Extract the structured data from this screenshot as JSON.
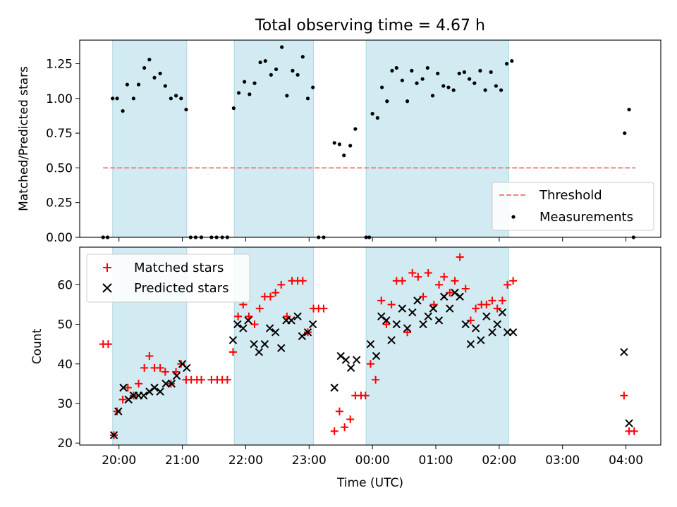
{
  "title": "Total observing time = 4.67 h",
  "colors": {
    "band": "#add8e6",
    "threshold": "#f08080",
    "measure": "#000000",
    "matched": "#ff0000",
    "predicted": "#000000"
  },
  "chart_data": [
    {
      "type": "scatter",
      "panel": "top",
      "ylabel": "Matched/Predicted stars",
      "xlabel": "",
      "ylim": [
        0,
        1.42
      ],
      "yticks": [
        0.0,
        0.25,
        0.5,
        0.75,
        1.0,
        1.25
      ],
      "ytick_labels": [
        "0.00",
        "0.25",
        "0.50",
        "0.75",
        "1.00",
        "1.25"
      ],
      "threshold": {
        "value": 0.5,
        "x_start": 19.75,
        "x_end": 28.15
      },
      "legend": [
        "Threshold",
        "Measurements"
      ],
      "legend_position": "lower right",
      "series": [
        {
          "name": "Measurements",
          "points": [
            [
              19.75,
              0.0
            ],
            [
              19.82,
              0.0
            ],
            [
              19.9,
              1.0
            ],
            [
              19.97,
              1.0
            ],
            [
              20.06,
              0.91
            ],
            [
              20.13,
              1.1
            ],
            [
              20.23,
              1.0
            ],
            [
              20.31,
              1.1
            ],
            [
              20.4,
              1.22
            ],
            [
              20.48,
              1.28
            ],
            [
              20.56,
              1.15
            ],
            [
              20.65,
              1.18
            ],
            [
              20.73,
              1.09
            ],
            [
              20.82,
              1.0
            ],
            [
              20.9,
              1.02
            ],
            [
              20.98,
              1.0
            ],
            [
              21.06,
              0.92
            ],
            [
              21.13,
              0.0
            ],
            [
              21.21,
              0.0
            ],
            [
              21.3,
              0.0
            ],
            [
              21.46,
              0.0
            ],
            [
              21.54,
              0.0
            ],
            [
              21.63,
              0.0
            ],
            [
              21.71,
              0.0
            ],
            [
              21.81,
              0.93
            ],
            [
              21.89,
              1.04
            ],
            [
              21.98,
              1.12
            ],
            [
              22.06,
              1.03
            ],
            [
              22.14,
              1.11
            ],
            [
              22.23,
              1.26
            ],
            [
              22.31,
              1.27
            ],
            [
              22.4,
              1.17
            ],
            [
              22.48,
              1.21
            ],
            [
              22.57,
              1.37
            ],
            [
              22.65,
              1.02
            ],
            [
              22.74,
              1.2
            ],
            [
              22.82,
              1.17
            ],
            [
              22.9,
              1.3
            ],
            [
              22.98,
              1.0
            ],
            [
              23.06,
              1.08
            ],
            [
              23.15,
              0.0
            ],
            [
              23.23,
              0.0
            ],
            [
              23.4,
              0.68
            ],
            [
              23.48,
              0.67
            ],
            [
              23.55,
              0.59
            ],
            [
              23.65,
              0.66
            ],
            [
              23.73,
              0.78
            ],
            [
              23.9,
              0.0
            ],
            [
              23.95,
              0.0
            ],
            [
              24.0,
              0.89
            ],
            [
              24.08,
              0.86
            ],
            [
              24.15,
              1.08
            ],
            [
              24.23,
              0.98
            ],
            [
              24.31,
              1.2
            ],
            [
              24.38,
              1.22
            ],
            [
              24.47,
              1.13
            ],
            [
              24.55,
              0.98
            ],
            [
              24.62,
              1.2
            ],
            [
              24.7,
              1.11
            ],
            [
              24.79,
              1.14
            ],
            [
              24.87,
              1.22
            ],
            [
              24.95,
              1.02
            ],
            [
              25.03,
              1.18
            ],
            [
              25.12,
              1.09
            ],
            [
              25.2,
              1.08
            ],
            [
              25.28,
              1.06
            ],
            [
              25.37,
              1.18
            ],
            [
              25.45,
              1.19
            ],
            [
              25.53,
              1.14
            ],
            [
              25.61,
              1.11
            ],
            [
              25.7,
              1.2
            ],
            [
              25.78,
              1.06
            ],
            [
              25.87,
              1.19
            ],
            [
              25.95,
              1.09
            ],
            [
              26.03,
              1.06
            ],
            [
              26.12,
              1.25
            ],
            [
              26.2,
              1.27
            ],
            [
              27.98,
              0.75
            ],
            [
              28.05,
              0.92
            ],
            [
              28.12,
              0.0
            ]
          ]
        }
      ]
    },
    {
      "type": "scatter",
      "panel": "bottom",
      "ylabel": "Count",
      "xlabel": "Time (UTC)",
      "ylim": [
        19.5,
        69.5
      ],
      "yticks": [
        20,
        30,
        40,
        50,
        60
      ],
      "ytick_labels": [
        "20",
        "30",
        "40",
        "50",
        "60"
      ],
      "legend": [
        "Matched stars",
        "Predicted stars"
      ],
      "legend_position": "upper left",
      "series": [
        {
          "name": "Matched stars",
          "marker": "+",
          "points": [
            [
              19.75,
              45
            ],
            [
              19.83,
              45
            ],
            [
              19.92,
              22
            ],
            [
              19.97,
              28
            ],
            [
              20.06,
              31
            ],
            [
              20.14,
              34
            ],
            [
              20.23,
              32
            ],
            [
              20.31,
              35
            ],
            [
              20.4,
              39
            ],
            [
              20.48,
              42
            ],
            [
              20.56,
              39
            ],
            [
              20.65,
              39
            ],
            [
              20.73,
              38
            ],
            [
              20.82,
              35
            ],
            [
              20.9,
              38
            ],
            [
              20.98,
              40
            ],
            [
              21.06,
              36
            ],
            [
              21.14,
              36
            ],
            [
              21.23,
              36
            ],
            [
              21.3,
              36
            ],
            [
              21.46,
              36
            ],
            [
              21.55,
              36
            ],
            [
              21.63,
              36
            ],
            [
              21.71,
              36
            ],
            [
              21.8,
              43
            ],
            [
              21.88,
              52
            ],
            [
              21.96,
              55
            ],
            [
              22.05,
              52
            ],
            [
              22.14,
              50
            ],
            [
              22.22,
              54
            ],
            [
              22.3,
              57
            ],
            [
              22.39,
              57
            ],
            [
              22.47,
              58
            ],
            [
              22.56,
              60
            ],
            [
              22.65,
              52
            ],
            [
              22.73,
              61
            ],
            [
              22.82,
              61
            ],
            [
              22.9,
              61
            ],
            [
              22.98,
              48
            ],
            [
              23.07,
              54
            ],
            [
              23.15,
              54
            ],
            [
              23.23,
              54
            ],
            [
              23.4,
              23
            ],
            [
              23.48,
              28
            ],
            [
              23.56,
              24
            ],
            [
              23.65,
              26
            ],
            [
              23.73,
              32
            ],
            [
              23.82,
              32
            ],
            [
              23.89,
              32
            ],
            [
              23.97,
              40
            ],
            [
              24.05,
              36
            ],
            [
              24.14,
              56
            ],
            [
              24.22,
              50
            ],
            [
              24.3,
              55
            ],
            [
              24.38,
              61
            ],
            [
              24.47,
              61
            ],
            [
              24.55,
              48
            ],
            [
              24.63,
              63
            ],
            [
              24.72,
              62
            ],
            [
              24.8,
              57
            ],
            [
              24.88,
              63
            ],
            [
              24.97,
              55
            ],
            [
              25.05,
              60
            ],
            [
              25.13,
              62
            ],
            [
              25.22,
              58
            ],
            [
              25.3,
              61
            ],
            [
              25.38,
              67
            ],
            [
              25.47,
              59
            ],
            [
              25.55,
              51
            ],
            [
              25.63,
              54
            ],
            [
              25.72,
              55
            ],
            [
              25.8,
              55
            ],
            [
              25.89,
              56
            ],
            [
              25.97,
              54
            ],
            [
              26.05,
              56
            ],
            [
              26.13,
              60
            ],
            [
              26.22,
              61
            ],
            [
              27.97,
              32
            ],
            [
              28.05,
              23
            ],
            [
              28.13,
              23
            ]
          ]
        },
        {
          "name": "Predicted stars",
          "marker": "x",
          "points": [
            [
              19.92,
              22
            ],
            [
              19.99,
              28
            ],
            [
              20.07,
              34
            ],
            [
              20.15,
              31
            ],
            [
              20.23,
              32
            ],
            [
              20.31,
              32
            ],
            [
              20.39,
              32
            ],
            [
              20.48,
              33
            ],
            [
              20.56,
              34
            ],
            [
              20.65,
              33
            ],
            [
              20.74,
              35
            ],
            [
              20.83,
              35
            ],
            [
              20.91,
              37
            ],
            [
              21.0,
              40
            ],
            [
              21.07,
              39
            ],
            [
              21.8,
              46
            ],
            [
              21.87,
              50
            ],
            [
              21.96,
              49
            ],
            [
              22.04,
              51
            ],
            [
              22.13,
              45
            ],
            [
              22.21,
              43
            ],
            [
              22.3,
              45
            ],
            [
              22.38,
              49
            ],
            [
              22.47,
              48
            ],
            [
              22.56,
              44
            ],
            [
              22.64,
              51
            ],
            [
              22.72,
              51
            ],
            [
              22.82,
              52
            ],
            [
              22.89,
              47
            ],
            [
              22.98,
              48
            ],
            [
              23.06,
              50
            ],
            [
              23.4,
              34
            ],
            [
              23.5,
              42
            ],
            [
              23.58,
              41
            ],
            [
              23.66,
              39
            ],
            [
              23.75,
              41
            ],
            [
              23.97,
              45
            ],
            [
              24.06,
              42
            ],
            [
              24.14,
              52
            ],
            [
              24.22,
              51
            ],
            [
              24.3,
              46
            ],
            [
              24.38,
              50
            ],
            [
              24.47,
              54
            ],
            [
              24.55,
              49
            ],
            [
              24.63,
              53
            ],
            [
              24.71,
              56
            ],
            [
              24.8,
              50
            ],
            [
              24.88,
              52
            ],
            [
              24.96,
              54
            ],
            [
              25.05,
              51
            ],
            [
              25.13,
              57
            ],
            [
              25.22,
              54
            ],
            [
              25.3,
              58
            ],
            [
              25.38,
              57
            ],
            [
              25.47,
              50
            ],
            [
              25.55,
              45
            ],
            [
              25.63,
              49
            ],
            [
              25.71,
              46
            ],
            [
              25.8,
              52
            ],
            [
              25.89,
              48
            ],
            [
              25.97,
              50
            ],
            [
              26.05,
              53
            ],
            [
              26.13,
              48
            ],
            [
              26.22,
              48
            ],
            [
              27.97,
              43
            ],
            [
              28.05,
              25
            ]
          ]
        }
      ]
    }
  ],
  "xaxis": {
    "xlim": [
      19.38,
      28.55
    ],
    "ticks": [
      20,
      21,
      22,
      23,
      24,
      25,
      26,
      27,
      28
    ],
    "tick_labels": [
      "20:00",
      "21:00",
      "22:00",
      "23:00",
      "00:00",
      "01:00",
      "02:00",
      "03:00",
      "04:00"
    ],
    "label": "Time (UTC)"
  },
  "bands": [
    [
      19.9,
      21.07
    ],
    [
      21.82,
      23.07
    ],
    [
      23.9,
      26.15
    ]
  ]
}
